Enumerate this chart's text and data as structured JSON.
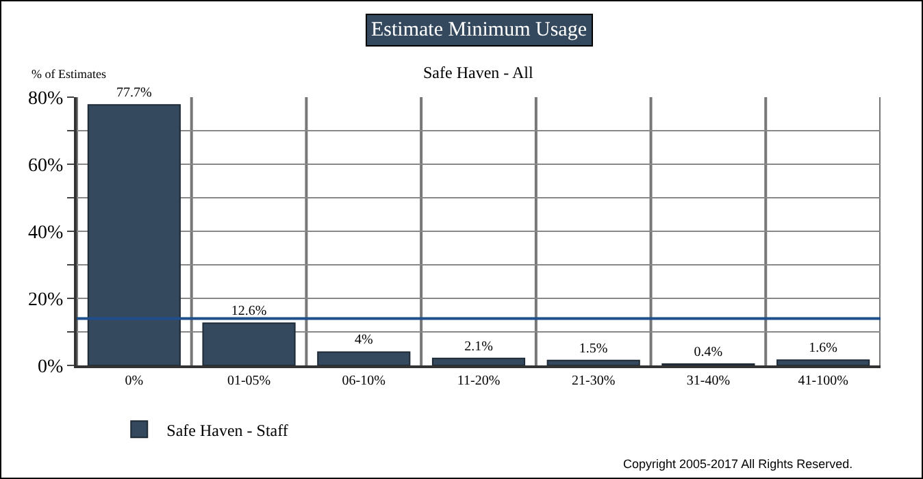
{
  "chart_data": {
    "type": "bar",
    "title": "Estimate Minimum Usage",
    "subtitle": "Safe Haven - All",
    "ylabel": "% of Estimates",
    "categories": [
      "0%",
      "01-05%",
      "06-10%",
      "11-20%",
      "21-30%",
      "31-40%",
      "41-100%"
    ],
    "series": [
      {
        "name": "Safe Haven - Staff",
        "color": "#34495e",
        "values": [
          77.7,
          12.6,
          4,
          2.1,
          1.5,
          0.4,
          1.6
        ],
        "value_labels": [
          "77.7%",
          "12.6%",
          "4%",
          "2.1%",
          "1.5%",
          "0.4%",
          "1.6%"
        ]
      }
    ],
    "ylim": [
      0,
      80
    ],
    "yticks": [
      {
        "value": 0,
        "label": "0%"
      },
      {
        "value": 10,
        "label": null
      },
      {
        "value": 20,
        "label": "20%"
      },
      {
        "value": 30,
        "label": null
      },
      {
        "value": 40,
        "label": "40%"
      },
      {
        "value": 50,
        "label": null
      },
      {
        "value": 60,
        "label": "60%"
      },
      {
        "value": 70,
        "label": null
      },
      {
        "value": 80,
        "label": "80%"
      }
    ],
    "ref_lines": [
      {
        "axis": "y",
        "value": 14,
        "color": "#1f4e8c"
      }
    ],
    "annotations": [
      "Copyright 2005-2017 All Rights Reserved."
    ],
    "grid": true,
    "legend": "bottom left"
  }
}
